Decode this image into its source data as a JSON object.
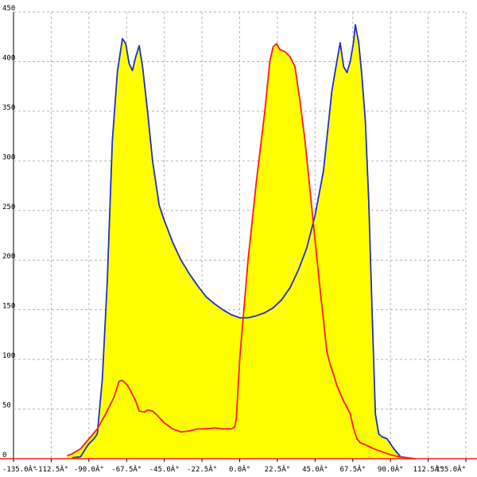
{
  "chart_data": {
    "type": "area",
    "title": "",
    "xlabel": "",
    "ylabel": "",
    "xlim": [
      -135,
      135
    ],
    "ylim": [
      0,
      450
    ],
    "grid": true,
    "x_ticks": [
      -135,
      -112.5,
      -90,
      -67.5,
      -45,
      -22.5,
      0,
      22.5,
      45,
      67.5,
      90,
      112.5,
      135
    ],
    "x_tick_labels": [
      "-135.0Â°",
      "-112.5Â°",
      "-90.0Â°",
      "-67.5Â°",
      "-45.0Â°",
      "-22.5Â°",
      "0.0Â°",
      "22.5Â°",
      "45.0Â°",
      "67.5Â°",
      "90.0Â°",
      "112.5Â°",
      "135.0Â°"
    ],
    "y_ticks": [
      0,
      50,
      100,
      150,
      200,
      250,
      300,
      350,
      400,
      450
    ],
    "y_tick_labels": [
      "0",
      "50",
      "100",
      "150",
      "200",
      "250",
      "300",
      "350",
      "400",
      "450"
    ],
    "colors": {
      "fill": "#ffff00",
      "blue_series": "#1f2fc8",
      "red_series": "#ff1a1a",
      "grid": "#b5b5b5",
      "axis": "#ff1a1a"
    },
    "series": [
      {
        "color": "#1f2fc8",
        "points": [
          [
            -100,
            1
          ],
          [
            -95,
            2
          ],
          [
            -92,
            10
          ],
          [
            -90,
            15
          ],
          [
            -87,
            20
          ],
          [
            -85,
            25
          ],
          [
            -82,
            80
          ],
          [
            -79,
            180
          ],
          [
            -76,
            320
          ],
          [
            -73,
            390
          ],
          [
            -70,
            423
          ],
          [
            -68,
            418
          ],
          [
            -66,
            398
          ],
          [
            -64,
            391
          ],
          [
            -62,
            405
          ],
          [
            -60,
            416
          ],
          [
            -58,
            395
          ],
          [
            -55,
            350
          ],
          [
            -52,
            300
          ],
          [
            -48,
            255
          ],
          [
            -45,
            240
          ],
          [
            -40,
            218
          ],
          [
            -35,
            200
          ],
          [
            -30,
            186
          ],
          [
            -25,
            174
          ],
          [
            -20,
            163
          ],
          [
            -15,
            156
          ],
          [
            -10,
            150
          ],
          [
            -5,
            145
          ],
          [
            0,
            142
          ],
          [
            5,
            142
          ],
          [
            10,
            144
          ],
          [
            15,
            147
          ],
          [
            20,
            152
          ],
          [
            25,
            160
          ],
          [
            30,
            172
          ],
          [
            35,
            190
          ],
          [
            40,
            212
          ],
          [
            45,
            245
          ],
          [
            50,
            290
          ],
          [
            55,
            370
          ],
          [
            58,
            400
          ],
          [
            60,
            419
          ],
          [
            62,
            395
          ],
          [
            64,
            389
          ],
          [
            66,
            400
          ],
          [
            68,
            420
          ],
          [
            69,
            437
          ],
          [
            71,
            420
          ],
          [
            73,
            385
          ],
          [
            75,
            340
          ],
          [
            77,
            260
          ],
          [
            79,
            150
          ],
          [
            81,
            45
          ],
          [
            83,
            25
          ],
          [
            85,
            22
          ],
          [
            88,
            20
          ],
          [
            92,
            10
          ],
          [
            96,
            2
          ],
          [
            100,
            1
          ]
        ]
      },
      {
        "color": "#ff1a1a",
        "points": [
          [
            -103,
            3
          ],
          [
            -100,
            5
          ],
          [
            -95,
            10
          ],
          [
            -90,
            20
          ],
          [
            -85,
            30
          ],
          [
            -80,
            45
          ],
          [
            -75,
            62
          ],
          [
            -72,
            78
          ],
          [
            -70,
            79
          ],
          [
            -67,
            74
          ],
          [
            -65,
            68
          ],
          [
            -62,
            58
          ],
          [
            -60,
            48
          ],
          [
            -57,
            47
          ],
          [
            -55,
            49
          ],
          [
            -52,
            48
          ],
          [
            -50,
            45
          ],
          [
            -45,
            36
          ],
          [
            -40,
            30
          ],
          [
            -35,
            27
          ],
          [
            -30,
            28
          ],
          [
            -25,
            30
          ],
          [
            -20,
            30
          ],
          [
            -15,
            31
          ],
          [
            -10,
            30
          ],
          [
            -5,
            30
          ],
          [
            -3,
            32
          ],
          [
            -2,
            40
          ],
          [
            0,
            100
          ],
          [
            5,
            200
          ],
          [
            10,
            280
          ],
          [
            15,
            350
          ],
          [
            18,
            400
          ],
          [
            20,
            415
          ],
          [
            22,
            418
          ],
          [
            24,
            412
          ],
          [
            27,
            410
          ],
          [
            30,
            405
          ],
          [
            33,
            395
          ],
          [
            36,
            360
          ],
          [
            39,
            320
          ],
          [
            42,
            270
          ],
          [
            45,
            220
          ],
          [
            48,
            170
          ],
          [
            50,
            140
          ],
          [
            52,
            108
          ],
          [
            54,
            95
          ],
          [
            56,
            85
          ],
          [
            58,
            74
          ],
          [
            62,
            58
          ],
          [
            64,
            52
          ],
          [
            66,
            45
          ],
          [
            68,
            30
          ],
          [
            70,
            20
          ],
          [
            72,
            16
          ],
          [
            75,
            14
          ],
          [
            80,
            10
          ],
          [
            85,
            7
          ],
          [
            90,
            4
          ],
          [
            95,
            2
          ],
          [
            100,
            1
          ],
          [
            105,
            0
          ]
        ]
      }
    ]
  }
}
